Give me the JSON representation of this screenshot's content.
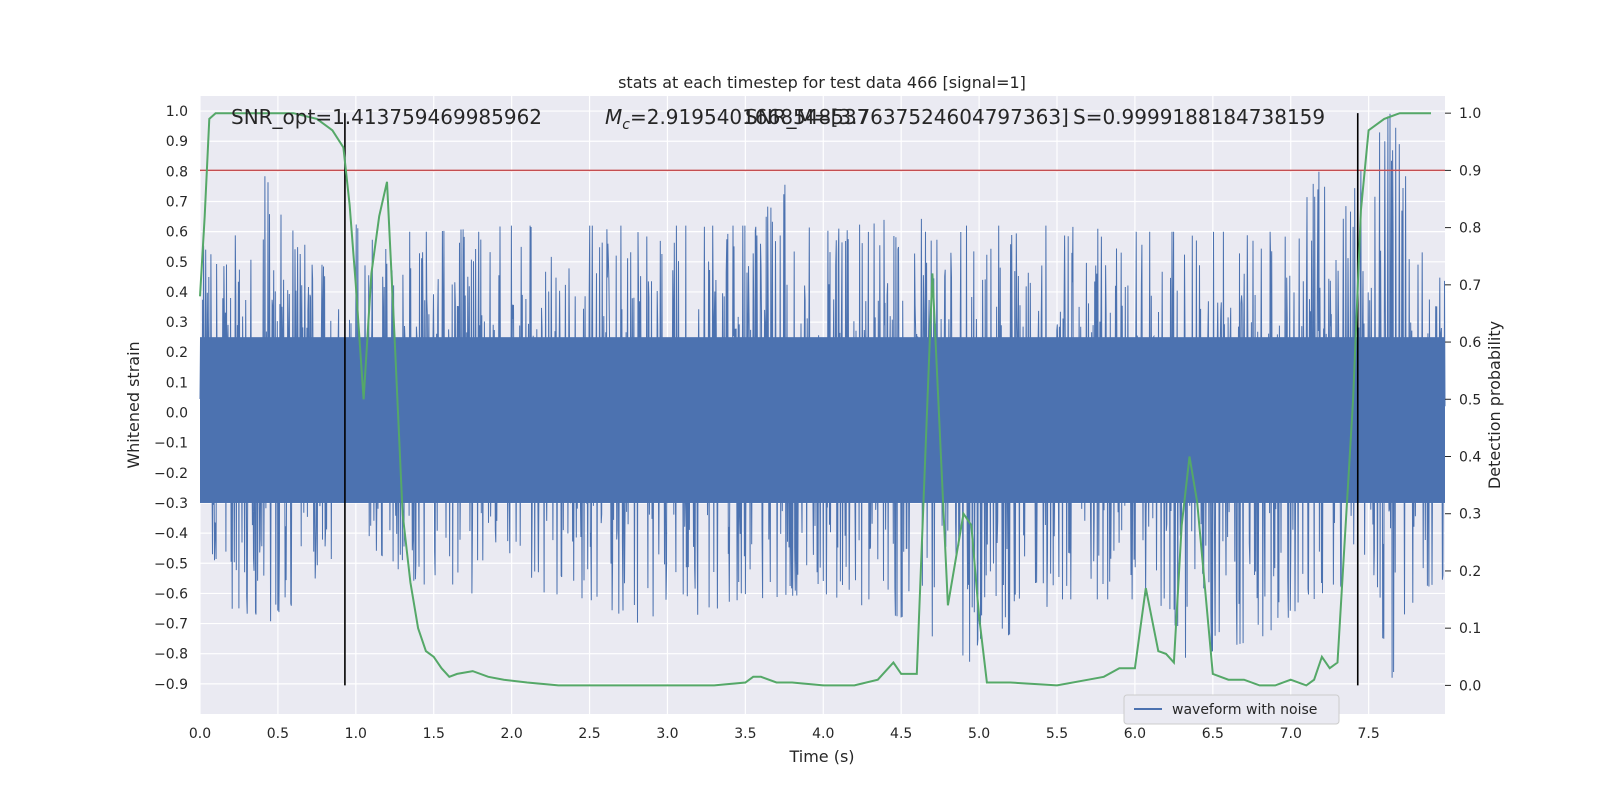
{
  "chart_data": {
    "type": "line",
    "title": "stats at each timestep for test data 466 [signal=1]",
    "xlabel": "Time (s)",
    "ylabel": "Whitened strain",
    "y2label": "Detection probability",
    "xlim": [
      0.0,
      7.99
    ],
    "ylim": [
      -1.0,
      1.05
    ],
    "y2lim": [
      -0.05,
      1.03
    ],
    "xticks": [
      "0.0",
      "0.5",
      "1.0",
      "1.5",
      "2.0",
      "2.5",
      "3.0",
      "3.5",
      "4.0",
      "4.5",
      "5.0",
      "5.5",
      "6.0",
      "6.5",
      "7.0",
      "7.5"
    ],
    "xtick_values": [
      0.0,
      0.5,
      1.0,
      1.5,
      2.0,
      2.5,
      3.0,
      3.5,
      4.0,
      4.5,
      5.0,
      5.5,
      6.0,
      6.5,
      7.0,
      7.5
    ],
    "yticks": [
      "1.0",
      "0.9",
      "0.8",
      "0.7",
      "0.6",
      "0.5",
      "0.4",
      "0.3",
      "0.2",
      "0.1",
      "0.0",
      "−0.1",
      "−0.2",
      "−0.3",
      "−0.4",
      "−0.5",
      "−0.6",
      "−0.7",
      "−0.8",
      "−0.9"
    ],
    "ytick_values": [
      1.0,
      0.9,
      0.8,
      0.7,
      0.6,
      0.5,
      0.4,
      0.3,
      0.2,
      0.1,
      0.0,
      -0.1,
      -0.2,
      -0.3,
      -0.4,
      -0.5,
      -0.6,
      -0.7,
      -0.8,
      -0.9
    ],
    "y2ticks": [
      "1.0",
      "0.9",
      "0.8",
      "0.7",
      "0.6",
      "0.5",
      "0.4",
      "0.3",
      "0.2",
      "0.1",
      "0.0"
    ],
    "y2tick_values": [
      1.0,
      0.9,
      0.8,
      0.7,
      0.6,
      0.5,
      0.4,
      0.3,
      0.2,
      0.1,
      0.0
    ],
    "grid": true,
    "legend_placement": "lower-right",
    "annotations": {
      "snr_opt": "SNR_opt=1.413759469985962",
      "mc_prefix": "M",
      "mc_sub": "c",
      "mc_value": "=2.9195401668548537",
      "snr_max": "SNR_M=[3.7637524604797363]",
      "s_value": "S=0.9999188184738159"
    },
    "threshold_line": {
      "axis": "y2",
      "value": 0.9,
      "color": "#c44e52"
    },
    "vertical_markers": [
      0.93,
      7.43
    ],
    "series": [
      {
        "name": "waveform with noise",
        "axis": "y",
        "color": "#4c72b0",
        "kind": "noise",
        "x_range": [
          0.0,
          7.99
        ],
        "envelope_upper": [
          [
            0.0,
            0.55
          ],
          [
            0.3,
            0.6
          ],
          [
            0.4,
            0.8
          ],
          [
            0.6,
            0.6
          ],
          [
            0.9,
            0.42
          ],
          [
            1.0,
            0.7
          ],
          [
            1.2,
            0.6
          ],
          [
            1.5,
            0.6
          ],
          [
            2.0,
            0.62
          ],
          [
            2.5,
            0.62
          ],
          [
            3.0,
            0.62
          ],
          [
            3.5,
            0.62
          ],
          [
            3.9,
            0.87
          ],
          [
            4.0,
            0.6
          ],
          [
            4.5,
            0.65
          ],
          [
            5.0,
            0.62
          ],
          [
            5.5,
            0.62
          ],
          [
            6.0,
            0.6
          ],
          [
            6.5,
            0.6
          ],
          [
            7.0,
            0.6
          ],
          [
            7.2,
            0.82
          ],
          [
            7.3,
            0.55
          ],
          [
            7.4,
            0.8
          ],
          [
            7.5,
            0.9
          ],
          [
            7.65,
            1.0
          ],
          [
            7.8,
            0.65
          ],
          [
            7.99,
            0.45
          ]
        ],
        "envelope_lower": [
          [
            0.0,
            -0.35
          ],
          [
            0.2,
            -0.65
          ],
          [
            0.5,
            -0.7
          ],
          [
            0.9,
            -0.45
          ],
          [
            1.0,
            -0.4
          ],
          [
            1.5,
            -0.62
          ],
          [
            2.0,
            -0.58
          ],
          [
            2.5,
            -0.62
          ],
          [
            2.9,
            -0.72
          ],
          [
            3.5,
            -0.62
          ],
          [
            4.0,
            -0.6
          ],
          [
            4.5,
            -0.68
          ],
          [
            4.95,
            -0.83
          ],
          [
            5.5,
            -0.62
          ],
          [
            6.0,
            -0.62
          ],
          [
            6.3,
            -0.82
          ],
          [
            6.8,
            -0.75
          ],
          [
            7.2,
            -0.6
          ],
          [
            7.5,
            -0.55
          ],
          [
            7.65,
            -0.88
          ],
          [
            7.8,
            -0.6
          ],
          [
            7.99,
            -0.55
          ]
        ]
      },
      {
        "name": "",
        "axis": "y2",
        "color": "#55a868",
        "x": [
          0.0,
          0.03,
          0.06,
          0.1,
          0.2,
          0.4,
          0.6,
          0.75,
          0.85,
          0.92,
          0.96,
          1.0,
          1.05,
          1.1,
          1.15,
          1.2,
          1.25,
          1.3,
          1.35,
          1.4,
          1.45,
          1.5,
          1.55,
          1.6,
          1.65,
          1.75,
          1.85,
          1.95,
          2.1,
          2.3,
          2.5,
          2.8,
          3.0,
          3.3,
          3.5,
          3.55,
          3.6,
          3.7,
          3.8,
          4.0,
          4.2,
          4.35,
          4.45,
          4.5,
          4.6,
          4.7,
          4.8,
          4.9,
          4.95,
          5.0,
          5.05,
          5.2,
          5.5,
          5.7,
          5.8,
          5.9,
          6.0,
          6.07,
          6.15,
          6.2,
          6.25,
          6.3,
          6.35,
          6.4,
          6.5,
          6.6,
          6.7,
          6.8,
          6.9,
          7.0,
          7.1,
          7.15,
          7.2,
          7.25,
          7.3,
          7.4,
          7.45,
          7.5,
          7.6,
          7.7,
          7.9
        ],
        "values": [
          0.68,
          0.82,
          0.99,
          1.0,
          1.0,
          1.0,
          1.0,
          0.99,
          0.97,
          0.94,
          0.84,
          0.7,
          0.5,
          0.72,
          0.82,
          0.88,
          0.6,
          0.3,
          0.18,
          0.1,
          0.06,
          0.05,
          0.03,
          0.015,
          0.02,
          0.025,
          0.015,
          0.01,
          0.005,
          0.0,
          0.0,
          0.0,
          0.0,
          0.0,
          0.005,
          0.015,
          0.015,
          0.005,
          0.005,
          0.0,
          0.0,
          0.01,
          0.04,
          0.02,
          0.02,
          0.72,
          0.14,
          0.3,
          0.28,
          0.12,
          0.005,
          0.005,
          0.0,
          0.01,
          0.015,
          0.03,
          0.03,
          0.17,
          0.06,
          0.055,
          0.04,
          0.28,
          0.4,
          0.32,
          0.02,
          0.01,
          0.01,
          0.0,
          0.0,
          0.01,
          0.0,
          0.01,
          0.05,
          0.03,
          0.04,
          0.5,
          0.83,
          0.97,
          0.99,
          1.0,
          1.0
        ]
      }
    ]
  }
}
